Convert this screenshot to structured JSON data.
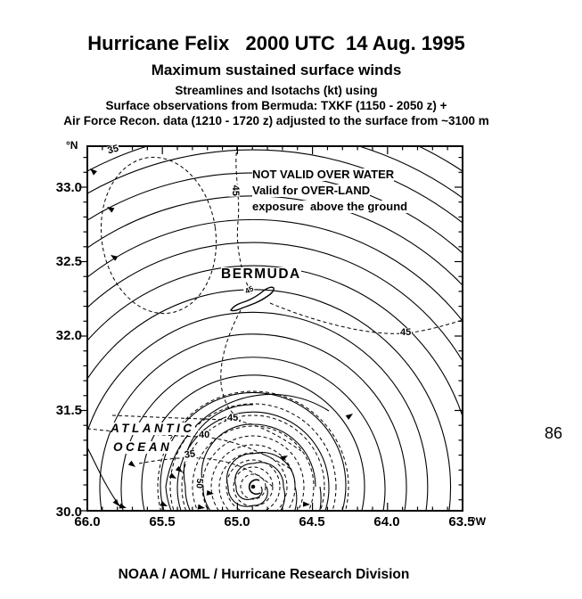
{
  "header": {
    "title": "Hurricane Felix   2000 UTC  14 Aug. 1995",
    "subtitle1": "Maximum sustained surface winds",
    "subtitle2": "Streamlines and Isotachs (kt) using",
    "subtitle3": "Surface observations from Bermuda: TXKF (1150 - 2050 z) +",
    "subtitle4": "Air Force Recon. data (1210 - 1720 z) adjusted to the surface from ~3100 m"
  },
  "footer": {
    "credit": "NOAA / AOML / Hurricane Research Division"
  },
  "page_number": "86",
  "map": {
    "compass_n": "°N",
    "compass_w": "°W",
    "y_axis": [
      "33.0",
      "32.5",
      "32.0",
      "31.5",
      "30.0"
    ],
    "x_axis": [
      "66.0",
      "65.5",
      "65.0",
      "64.5",
      "64.0",
      "63.5"
    ],
    "note_line1": "NOT VALID OVER WATER",
    "note_line2": "Valid for OVER-LAND",
    "note_line3": "exposure  above the ground",
    "bermuda": "BERMUDA",
    "ocean_line1": "ATLANTIC",
    "ocean_line2": "OCEAN",
    "iso": {
      "ellipse35": "35",
      "north45": "45",
      "island45": "45",
      "east45": "45",
      "west45": "45",
      "west40": "40",
      "west35": "35",
      "inner50": "50"
    }
  },
  "chart_data": {
    "type": "contour",
    "subtype": "streamlines-and-isotachs",
    "title": "Hurricane Felix   2000 UTC  14 Aug. 1995",
    "subtitle": "Maximum sustained surface winds",
    "x_axis_unit": "°W",
    "y_axis_unit": "°N",
    "x_tick_labels": [
      "66.0",
      "65.5",
      "65.0",
      "64.5",
      "64.0",
      "63.5"
    ],
    "y_tick_labels": [
      "33.0",
      "32.5",
      "32.0",
      "31.5",
      "30.0"
    ],
    "x_range_deg_w": [
      66.0,
      63.5
    ],
    "y_range_deg_n": [
      30.0,
      33.3
    ],
    "grid": false,
    "isotach_levels_kt": [
      35,
      40,
      45,
      50
    ],
    "isotach_labels": [
      {
        "value": 35,
        "lon_w": 65.8,
        "lat_n": 33.25,
        "note": "closed dashed contour NW corner"
      },
      {
        "value": 45,
        "lon_w": 65.0,
        "lat_n": 32.9,
        "note": "rotated, dashed line through note text"
      },
      {
        "value": 45,
        "lon_w": 64.9,
        "lat_n": 32.3,
        "note": "tiny label on Bermuda island"
      },
      {
        "value": 45,
        "lon_w": 63.9,
        "lat_n": 32.0,
        "note": "dashed contour east of island"
      },
      {
        "value": 45,
        "lon_w": 65.0,
        "lat_n": 31.45
      },
      {
        "value": 40,
        "lon_w": 65.2,
        "lat_n": 31.35
      },
      {
        "value": 35,
        "lon_w": 65.3,
        "lat_n": 31.2
      },
      {
        "value": 50,
        "lon_w": 65.25,
        "lat_n": 31.0,
        "note": "rotated, near storm center"
      }
    ],
    "storm_center_approx": {
      "lon_w": 64.9,
      "lat_n": 31.0
    },
    "features": [
      "solid streamlines spiral counterclockwise into storm center at lower middle",
      "dense dashed isotach rings around storm center",
      "Bermuda island plotted near 64.8W / 32.3N"
    ],
    "annotations": [
      "NOT VALID OVER WATER",
      "Valid for OVER-LAND",
      "exposure  above the ground",
      "BERMUDA",
      "ATLANTIC OCEAN"
    ]
  }
}
